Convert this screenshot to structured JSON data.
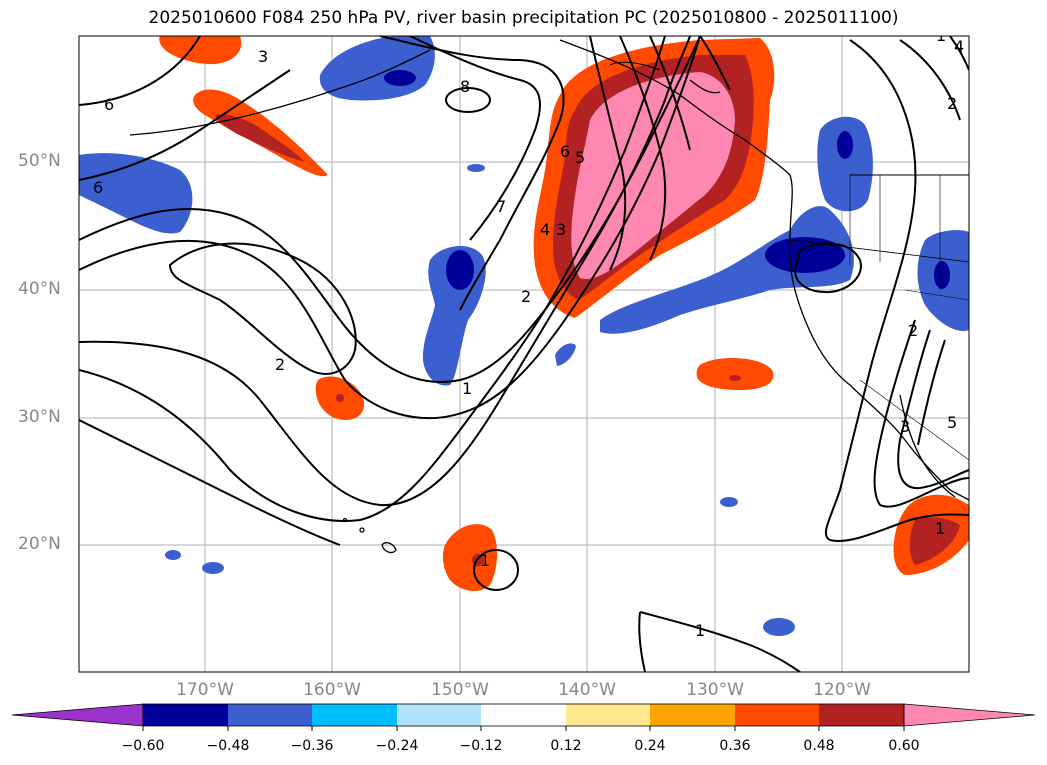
{
  "title": "2025010600 F084 250 hPa PV, river basin precipitation PC (2025010800 - 2025011100)",
  "map": {
    "lat_labels": [
      "50°N",
      "40°N",
      "30°N",
      "20°N"
    ],
    "lon_labels": [
      "170°W",
      "160°W",
      "150°W",
      "140°W",
      "130°W",
      "120°W"
    ],
    "contour_labels": [
      "6",
      "3",
      "8",
      "6",
      "7",
      "5",
      "6",
      "4",
      "3",
      "2",
      "2",
      "1",
      "1",
      "1",
      "2",
      "1",
      "3",
      "5",
      "2",
      "1",
      "4"
    ],
    "colors": {
      "coast": "#000000",
      "grid": "#b0b0b0",
      "contour": "#000000"
    }
  },
  "colorbar": {
    "ticks": [
      "−0.60",
      "−0.48",
      "−0.36",
      "−0.24",
      "−0.12",
      "0.12",
      "0.24",
      "0.36",
      "0.48",
      "0.60"
    ],
    "colors": [
      "#9933cc",
      "#000099",
      "#3b5fcf",
      "#00bfff",
      "#aee3fa",
      "#ffffff",
      "#ffe98f",
      "#ffa300",
      "#ff4a00",
      "#b22222",
      "#ff88b2"
    ]
  }
}
